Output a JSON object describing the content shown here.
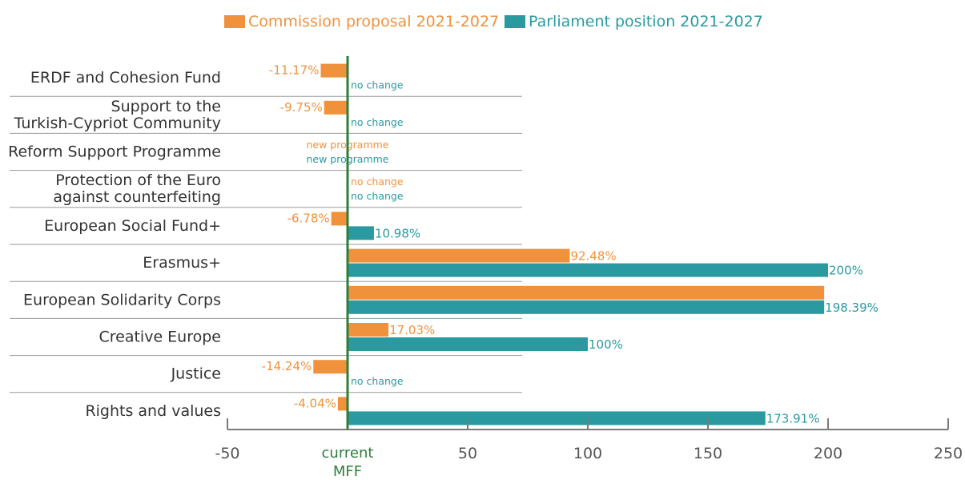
{
  "colors": {
    "commission": "#f0923c",
    "parliament": "#2a9aa0",
    "baseline": "#2e7d3c",
    "category_text": "#333333",
    "axis": "#7a7a7a",
    "separator": "#9a9a9a"
  },
  "chart_data": {
    "type": "bar",
    "orientation": "horizontal",
    "title": "",
    "xlabel": "",
    "ylabel": "",
    "xlim": [
      -50,
      250
    ],
    "xticks": [
      -50,
      0,
      50,
      100,
      150,
      200,
      250
    ],
    "xtick_labels": [
      "-50",
      "",
      "50",
      "100",
      "150",
      "200",
      "250"
    ],
    "baseline_label": [
      "current",
      "MFF"
    ],
    "legend_position": "top-center",
    "grid": false,
    "categories": [
      [
        "ERDF and Cohesion Fund"
      ],
      [
        "Support to the",
        "Turkish-Cypriot Community"
      ],
      [
        "Reform Support Programme"
      ],
      [
        "Protection of the Euro",
        "against counterfeiting"
      ],
      [
        "European Social Fund+"
      ],
      [
        "Erasmus+"
      ],
      [
        "European Solidarity Corps"
      ],
      [
        "Creative Europe"
      ],
      [
        "Justice"
      ],
      [
        "Rights and values"
      ]
    ],
    "series": [
      {
        "name": "Commission proposal 2021-2027",
        "color": "#f0923c",
        "values": [
          -11.17,
          -9.75,
          null,
          0,
          -6.78,
          92.48,
          198.39,
          17.03,
          -14.24,
          -4.04
        ],
        "labels": [
          "-11.17%",
          "-9.75%",
          "new programme",
          "no change",
          "-6.78%",
          "92.48%",
          "",
          "17.03%",
          "-14.24%",
          "-4.04%"
        ]
      },
      {
        "name": "Parliament position 2021-2027",
        "color": "#2a9aa0",
        "values": [
          0,
          0,
          null,
          0,
          10.98,
          200,
          198.39,
          100,
          0,
          173.91
        ],
        "labels": [
          "no change",
          "no change",
          "new programme",
          "no change",
          "10.98%",
          "200%",
          "198.39%",
          "100%",
          "no change",
          "173.91%"
        ]
      }
    ]
  }
}
